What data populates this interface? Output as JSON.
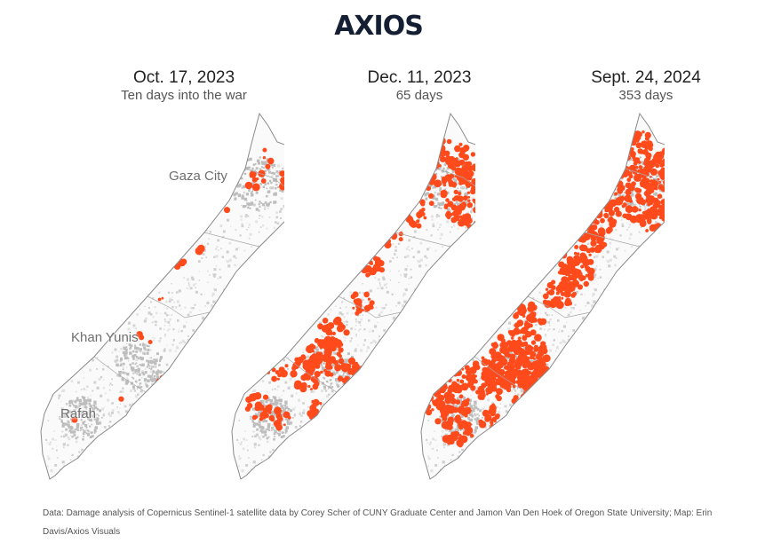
{
  "brand": {
    "name": "AXIOS"
  },
  "panels": [
    {
      "date": "Oct. 17, 2023",
      "subtitle": "Ten days into the war"
    },
    {
      "date": "Dec. 11, 2023",
      "subtitle": "65 days"
    },
    {
      "date": "Sept. 24, 2024",
      "subtitle": "353 days"
    }
  ],
  "map_labels": {
    "gaza_city": "Gaza City",
    "khan_yunis": "Khan Yunis",
    "rafah": "Rafah"
  },
  "footer": {
    "source": "Data: Damage analysis of Copernicus Sentinel-1 satellite data by Corey Scher of CUNY Graduate Center and Jamon Van Den Hoek of Oregon State University; Map: Erin Davis/Axios Visuals"
  },
  "colors": {
    "damage": "#ff4a1c",
    "built": "#c9c9c9",
    "outline": "#8a8a8a",
    "logo": "#151f33",
    "logo_accent": "#2f5bd6"
  }
}
